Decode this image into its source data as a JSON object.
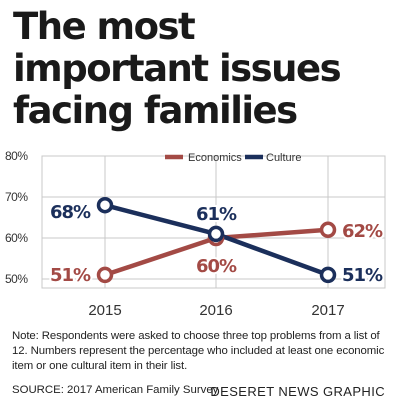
{
  "header": {
    "title_lines": [
      "The most",
      "important issues",
      "facing families"
    ]
  },
  "chart_data": {
    "type": "line",
    "categories": [
      "2015",
      "2016",
      "2017"
    ],
    "series": [
      {
        "name": "Economics",
        "values": [
          51,
          60,
          62
        ],
        "labels": [
          "51%",
          "60%",
          "62%"
        ],
        "color": "#a34a45"
      },
      {
        "name": "Culture",
        "values": [
          68,
          61,
          51
        ],
        "labels": [
          "68%",
          "61%",
          "51%"
        ],
        "color": "#1b2f5b"
      }
    ],
    "yticks": [
      50,
      60,
      70,
      80
    ],
    "ytick_labels": [
      "50%",
      "60%",
      "70%",
      "80%"
    ],
    "ylim": [
      46,
      80
    ],
    "grid": true,
    "legend_position": "top-right"
  },
  "footer": {
    "note": "Note: Respondents were asked to choose three top problems from a list of 12. Numbers represent the percentage who included at least one economic item or one cultural item in their list.",
    "source": "SOURCE: 2017 American Family Survey",
    "credit": "DESERET NEWS GRAPHIC"
  }
}
